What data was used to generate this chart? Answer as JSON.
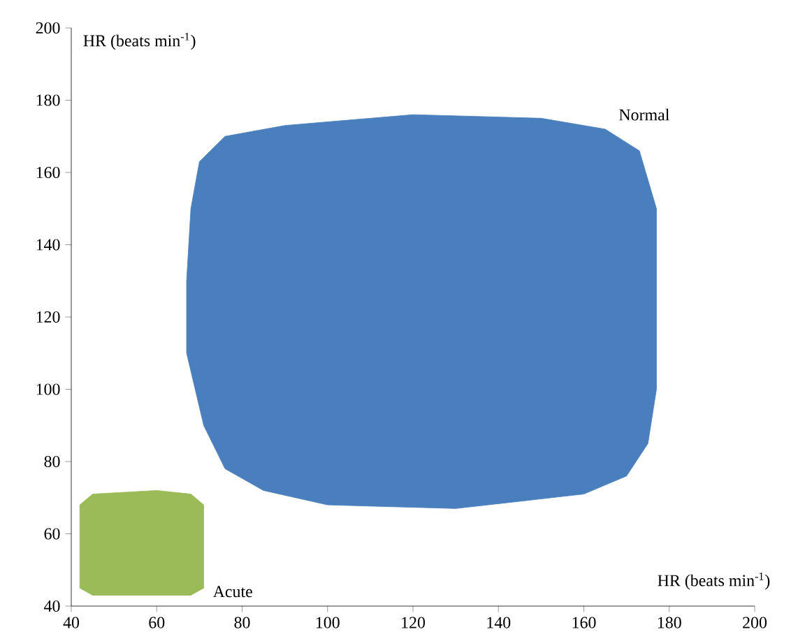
{
  "chart_data": {
    "type": "area",
    "xlabel": "HR (beats min$^{-1}$)",
    "ylabel": "HR (beats min$^{-1}$)",
    "xlim": [
      40,
      200
    ],
    "ylim": [
      40,
      200
    ],
    "xticks": [
      40,
      60,
      80,
      100,
      120,
      140,
      160,
      180,
      200
    ],
    "yticks": [
      40,
      60,
      80,
      100,
      120,
      140,
      160,
      180,
      200
    ],
    "series": [
      {
        "name": "Normal",
        "color": "#4a7fbd",
        "x": [
          68,
          70,
          76,
          90,
          120,
          150,
          165,
          173,
          177,
          177,
          175,
          170,
          160,
          130,
          100,
          85,
          76,
          71,
          67,
          67
        ],
        "values": [
          150,
          163,
          170,
          173,
          176,
          175,
          172,
          166,
          150,
          100,
          85,
          76,
          71,
          67,
          68,
          72,
          78,
          90,
          110,
          130
        ]
      },
      {
        "name": "Acute",
        "color": "#9bbb59",
        "x": [
          42,
          42,
          45,
          60,
          68,
          71,
          71,
          68,
          45
        ],
        "values": [
          45,
          68,
          71,
          72,
          71,
          68,
          45,
          43,
          43
        ]
      }
    ]
  }
}
